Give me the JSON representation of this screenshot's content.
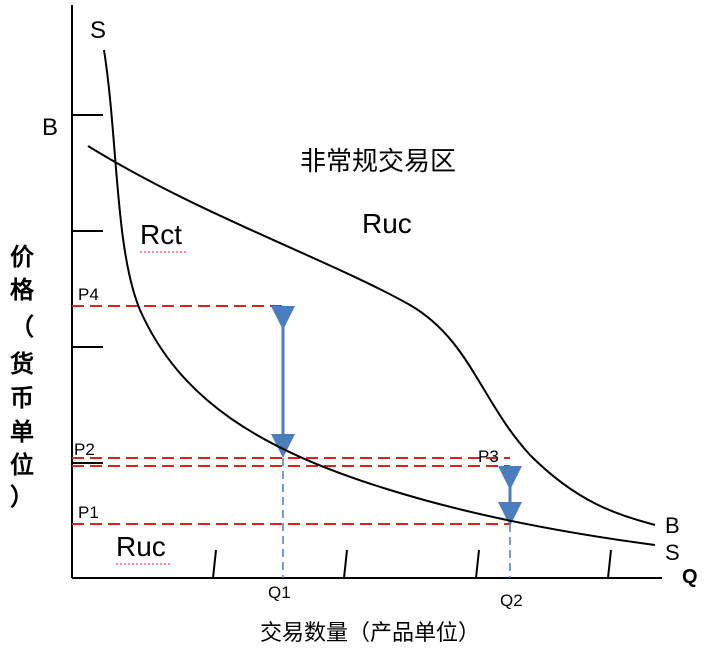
{
  "curves": {
    "s_top": "S",
    "s_bottom": "S",
    "b_left": "B",
    "b_right": "B"
  },
  "axes": {
    "q_label": "Q",
    "y_label_chars": [
      "价",
      "格",
      "（",
      "货",
      "币",
      "单",
      "位",
      "）"
    ],
    "x_label": "交易数量（产品单位）"
  },
  "regions": {
    "irregular_zone": "非常规交易区",
    "ruc_upper": "Ruc",
    "rct": "Rct",
    "ruc_lower": "Ruc"
  },
  "price_levels": {
    "p4": "P4",
    "p2": "P2",
    "p3": "P3",
    "p1": "P1"
  },
  "quantities": {
    "q1": "Q1",
    "q2": "Q2"
  },
  "colors": {
    "guide_red": "#e02020",
    "guide_blue": "#4a7ebf",
    "arrow_blue": "#4a7ebf",
    "curve": "#000000"
  }
}
